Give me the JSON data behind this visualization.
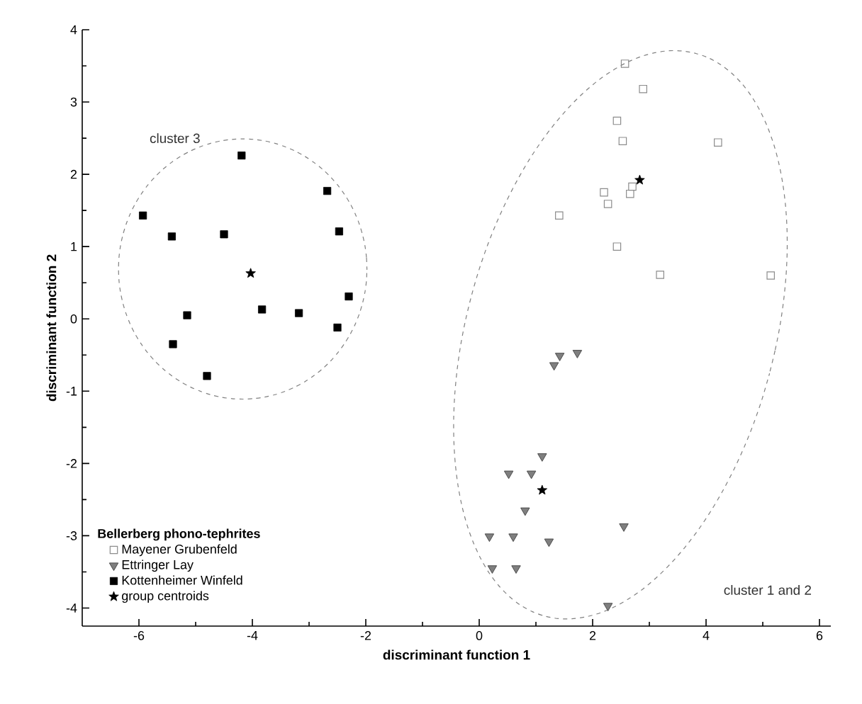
{
  "chart_data": {
    "type": "scatter",
    "xlabel": "discriminant function 1",
    "ylabel": "discriminant function 2",
    "legend_title": "**Bellerberg phono-tephrites**",
    "legend": "bottom left",
    "grid": false,
    "xlim": [
      -7,
      6.2
    ],
    "ylim": [
      -4.25,
      4
    ],
    "xticks": [
      -6,
      -4,
      -2,
      0,
      2,
      4,
      6
    ],
    "yticks": [
      -4,
      -3,
      -2,
      -1,
      0,
      1,
      2,
      3,
      4
    ],
    "annotations": [
      "cluster 3",
      "cluster 1 and 2"
    ],
    "series": [
      {
        "name": "Mayener Grubenfeld",
        "color": "#8c8c8c",
        "marker": "square",
        "x": [
          2.57,
          2.89,
          2.43,
          2.53,
          4.21,
          2.2,
          2.27,
          2.66,
          2.7,
          1.41,
          2.43,
          3.19,
          5.14
        ],
        "values": [
          3.53,
          3.18,
          2.74,
          2.46,
          2.44,
          1.75,
          1.59,
          1.73,
          1.83,
          1.43,
          1.0,
          0.61,
          0.6
        ]
      },
      {
        "name": "Ettringer Lay",
        "color": "#7f7f7f",
        "marker": "triangle",
        "x": [
          1.42,
          1.73,
          1.32,
          1.11,
          0.52,
          0.92,
          0.81,
          0.18,
          0.6,
          1.23,
          2.55,
          0.23,
          0.65,
          2.27
        ],
        "values": [
          -0.51,
          -0.47,
          -0.64,
          -1.9,
          -2.14,
          -2.14,
          -2.65,
          -3.01,
          -3.01,
          -3.08,
          -2.87,
          -3.45,
          -3.45,
          -3.97
        ]
      },
      {
        "name": "Kottenheimer Winfeld",
        "color": "#000000",
        "marker": "square",
        "x": [
          -5.93,
          -5.42,
          -4.5,
          -4.19,
          -2.68,
          -2.47,
          -2.3,
          -2.5,
          -3.18,
          -3.83,
          -5.15,
          -5.4,
          -4.8
        ],
        "values": [
          1.43,
          1.14,
          1.17,
          2.26,
          1.77,
          1.21,
          0.31,
          -0.12,
          0.08,
          0.13,
          0.05,
          -0.35,
          -0.79
        ]
      },
      {
        "name": "group centroids",
        "color": "#000000",
        "marker": "star",
        "x": [
          -4.03,
          2.83,
          1.11
        ],
        "values": [
          0.63,
          1.92,
          -2.37
        ]
      }
    ]
  }
}
